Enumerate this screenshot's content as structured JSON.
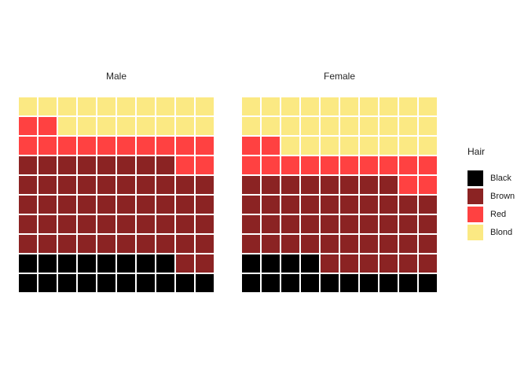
{
  "figure": {
    "background": "#ffffff",
    "text_color": "#262626"
  },
  "chart_data": {
    "type": "waffle",
    "description": "Faceted 10x10 waffle chart of hair color distribution by sex; each square = 1% of that group; filled bottom-up, left to right",
    "facets": [
      "Male",
      "Female"
    ],
    "legend": {
      "title": "Hair",
      "position": "right",
      "entries": [
        {
          "label": "Black",
          "color": "#000000"
        },
        {
          "label": "Brown",
          "color": "#8B2323"
        },
        {
          "label": "Red",
          "color": "#FF4141"
        },
        {
          "label": "Blond",
          "color": "#FBE983"
        }
      ]
    },
    "grid": {
      "rows": 10,
      "cols": 10,
      "total_cells_per_panel": 100
    },
    "cell_codes": {
      "k": "Black",
      "b": "Brown",
      "r": "Red",
      "l": "Blond"
    },
    "cell_colors": {
      "k": "#000000",
      "b": "#8B2323",
      "r": "#FF4141",
      "l": "#FBE983"
    },
    "panels": [
      {
        "title": "Male",
        "rows_top_to_bottom": [
          "llllllllll",
          "rrllllllll",
          "rrrrrrrrrr",
          "bbbbbbbbrr",
          "bbbbbbbbbb",
          "bbbbbbbbbb",
          "bbbbbbbbbb",
          "bbbbbbbbbb",
          "kkkkkkkkbb",
          "kkkkkkkkkk"
        ],
        "counts": {
          "Black": 18,
          "Brown": 50,
          "Red": 14,
          "Blond": 18
        }
      },
      {
        "title": "Female",
        "rows_top_to_bottom": [
          "llllllllll",
          "llllllllll",
          "rrllllllll",
          "rrrrrrrrrr",
          "bbbbbbbbrr",
          "bbbbbbbbbb",
          "bbbbbbbbbb",
          "bbbbbbbbbb",
          "kkkkbbbbbb",
          "kkkkkkkkkk"
        ],
        "counts": {
          "Black": 14,
          "Brown": 44,
          "Red": 14,
          "Blond": 28
        }
      }
    ]
  }
}
